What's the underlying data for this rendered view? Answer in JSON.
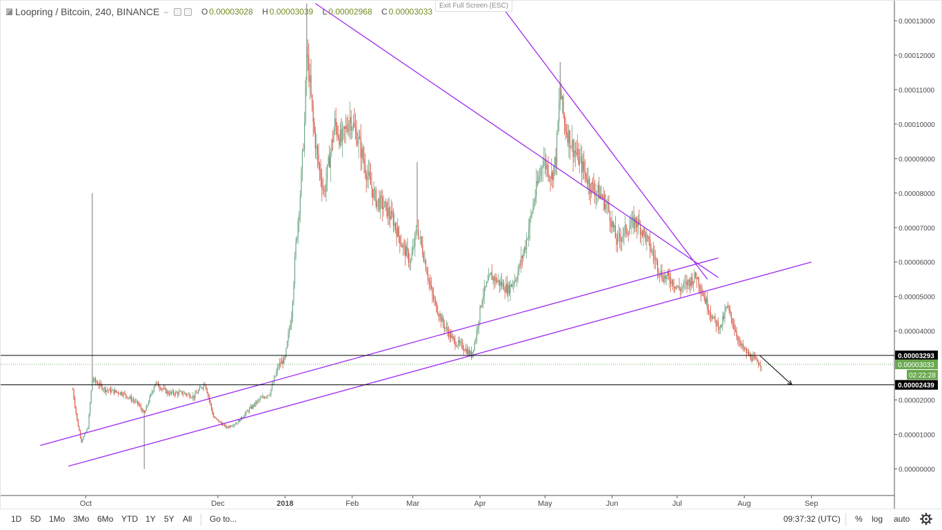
{
  "legend": {
    "symbol": "Loopring / Bitcoin, 240, BINANCE",
    "open_label": "O",
    "open": "0.00003028",
    "high_label": "H",
    "high": "0.00003039",
    "low_label": "L",
    "low": "0.00002968",
    "close_label": "C",
    "close": "0.00003033"
  },
  "exit_fullscreen": "Exit Full Screen (ESC)",
  "chart_data": {
    "type": "candlestick",
    "title": "Loopring / Bitcoin, 240, BINANCE",
    "y_ticks": [
      "0.00013000",
      "0.00012000",
      "0.00011000",
      "0.00010000",
      "0.00009000",
      "0.00008000",
      "0.00007000",
      "0.00006000",
      "0.00005000",
      "0.00004000",
      "0.00002000",
      "0.00001000",
      "0.00000000"
    ],
    "y_tick_values": [
      0.00013,
      0.00012,
      0.00011,
      0.0001,
      9e-05,
      8e-05,
      7e-05,
      6e-05,
      5e-05,
      4e-05,
      2e-05,
      1e-05,
      0.0
    ],
    "ylim": [
      -7.5e-06,
      0.000135
    ],
    "x_ticks": [
      "Oct",
      "Dec",
      "2018",
      "Feb",
      "Mar",
      "Apr",
      "May",
      "Jun",
      "Jul",
      "Aug",
      "Sep"
    ],
    "x_tick_dates": [
      "2017-10-01",
      "2017-12-01",
      "2018-01-01",
      "2018-02-01",
      "2018-03-01",
      "2018-04-01",
      "2018-05-01",
      "2018-06-01",
      "2018-07-01",
      "2018-08-01",
      "2018-09-01"
    ],
    "xlim": [
      "2017-08-24",
      "2018-10-09"
    ],
    "price_path": [
      [
        "2017-09-25",
        2.3e-05
      ],
      [
        "2017-09-27",
        1.4e-05
      ],
      [
        "2017-09-29",
        8e-06
      ],
      [
        "2017-10-02",
        1.2e-05
      ],
      [
        "2017-10-04",
        2.6e-05
      ],
      [
        "2017-10-10",
        2.3e-05
      ],
      [
        "2017-10-18",
        2.2e-05
      ],
      [
        "2017-10-25",
        1.9e-05
      ],
      [
        "2017-10-28",
        1.6e-05
      ],
      [
        "2017-11-02",
        2.5e-05
      ],
      [
        "2017-11-08",
        2.2e-05
      ],
      [
        "2017-11-15",
        2.2e-05
      ],
      [
        "2017-11-20",
        2.1e-05
      ],
      [
        "2017-11-25",
        2.5e-05
      ],
      [
        "2017-11-29",
        1.5e-05
      ],
      [
        "2017-12-05",
        1.2e-05
      ],
      [
        "2017-12-10",
        1.35e-05
      ],
      [
        "2017-12-15",
        1.7e-05
      ],
      [
        "2017-12-20",
        2e-05
      ],
      [
        "2017-12-25",
        2.2e-05
      ],
      [
        "2017-12-29",
        3e-05
      ],
      [
        "2018-01-01",
        3.2e-05
      ],
      [
        "2018-01-04",
        4.5e-05
      ],
      [
        "2018-01-06",
        6.5e-05
      ],
      [
        "2018-01-08",
        8e-05
      ],
      [
        "2018-01-10",
        0.0001
      ],
      [
        "2018-01-11",
        0.00012
      ],
      [
        "2018-01-12",
        0.000115
      ],
      [
        "2018-01-14",
        0.0001
      ],
      [
        "2018-01-16",
        9e-05
      ],
      [
        "2018-01-19",
        8e-05
      ],
      [
        "2018-01-21",
        8.8e-05
      ],
      [
        "2018-01-24",
        0.0001
      ],
      [
        "2018-01-27",
        9.5e-05
      ],
      [
        "2018-01-31",
        0.000102
      ],
      [
        "2018-02-04",
        9.5e-05
      ],
      [
        "2018-02-08",
        8.5e-05
      ],
      [
        "2018-02-12",
        7.8e-05
      ],
      [
        "2018-02-16",
        7.6e-05
      ],
      [
        "2018-02-20",
        7.2e-05
      ],
      [
        "2018-02-24",
        6.5e-05
      ],
      [
        "2018-02-28",
        6e-05
      ],
      [
        "2018-03-03",
        7e-05
      ],
      [
        "2018-03-06",
        6.2e-05
      ],
      [
        "2018-03-10",
        5e-05
      ],
      [
        "2018-03-15",
        4.2e-05
      ],
      [
        "2018-03-20",
        3.7e-05
      ],
      [
        "2018-03-25",
        3.5e-05
      ],
      [
        "2018-03-28",
        3.3e-05
      ],
      [
        "2018-03-30",
        3.8e-05
      ],
      [
        "2018-04-02",
        5e-05
      ],
      [
        "2018-04-06",
        5.6e-05
      ],
      [
        "2018-04-10",
        5.4e-05
      ],
      [
        "2018-04-14",
        5.2e-05
      ],
      [
        "2018-04-18",
        5.6e-05
      ],
      [
        "2018-04-22",
        6.5e-05
      ],
      [
        "2018-04-26",
        7.8e-05
      ],
      [
        "2018-04-30",
        9e-05
      ],
      [
        "2018-05-04",
        8.5e-05
      ],
      [
        "2018-05-06",
        9e-05
      ],
      [
        "2018-05-08",
        0.00011
      ],
      [
        "2018-05-10",
        0.0001
      ],
      [
        "2018-05-14",
        9.3e-05
      ],
      [
        "2018-05-18",
        8.8e-05
      ],
      [
        "2018-05-22",
        8.2e-05
      ],
      [
        "2018-05-26",
        8e-05
      ],
      [
        "2018-05-30",
        7.6e-05
      ],
      [
        "2018-06-03",
        6.6e-05
      ],
      [
        "2018-06-07",
        6.9e-05
      ],
      [
        "2018-06-12",
        7.2e-05
      ],
      [
        "2018-06-16",
        6.8e-05
      ],
      [
        "2018-06-20",
        6.2e-05
      ],
      [
        "2018-06-24",
        5.6e-05
      ],
      [
        "2018-06-28",
        5.5e-05
      ],
      [
        "2018-07-02",
        5.2e-05
      ],
      [
        "2018-07-06",
        5.4e-05
      ],
      [
        "2018-07-10",
        5.6e-05
      ],
      [
        "2018-07-14",
        4.9e-05
      ],
      [
        "2018-07-18",
        4.3e-05
      ],
      [
        "2018-07-21",
        4.1e-05
      ],
      [
        "2018-07-24",
        4.7e-05
      ],
      [
        "2018-07-27",
        4.2e-05
      ],
      [
        "2018-07-30",
        3.6e-05
      ],
      [
        "2018-08-03",
        3.3e-05
      ],
      [
        "2018-08-07",
        3.1e-05
      ],
      [
        "2018-08-09",
        3.03e-05
      ]
    ],
    "spikes": [
      {
        "date": "2017-10-04",
        "high": 8e-05
      },
      {
        "date": "2017-10-28",
        "low": 0.0
      },
      {
        "date": "2018-01-11",
        "high": 0.000135
      },
      {
        "date": "2018-03-03",
        "high": 8.9e-05
      },
      {
        "date": "2018-05-08",
        "high": 0.000118
      }
    ],
    "trend_lines": [
      {
        "from": [
          "2017-09-10",
          6.8e-06
        ],
        "to": [
          "2018-07-20",
          6.12e-05
        ]
      },
      {
        "from": [
          "2017-09-23",
          8e-07
        ],
        "to": [
          "2018-09-01",
          6e-05
        ]
      },
      {
        "from": [
          "2018-01-15",
          0.000135
        ],
        "to": [
          "2018-07-20",
          5.55e-05
        ]
      },
      {
        "from": [
          "2018-04-10",
          0.000135
        ],
        "to": [
          "2018-07-15",
          5.5e-05
        ]
      }
    ],
    "horizontal_lines": [
      {
        "value": 3.293e-05,
        "label": "0.00003293"
      },
      {
        "value": 2.439e-05,
        "label": "0.00002439"
      }
    ],
    "projection_arrow": {
      "from": [
        "2018-08-08",
        3.3e-05
      ],
      "to": [
        "2018-08-23",
        2.44e-05
      ]
    },
    "current_price": {
      "value": 3.033e-05,
      "label": "0.00003033",
      "countdown": "02:22:28"
    },
    "colors": {
      "up": "#6ba583",
      "down": "#d75442",
      "trend": "#9c27f0",
      "price_tag": "#6aa84f",
      "level": "#000000"
    }
  },
  "toolbar": {
    "ranges": [
      "1D",
      "5D",
      "1Mo",
      "3Mo",
      "6Mo",
      "YTD",
      "1Y",
      "5Y",
      "All"
    ],
    "goto": "Go to...",
    "time": "09:37:32 (UTC)",
    "percent": "%",
    "log": "log",
    "auto": "auto",
    "settings_icon": "gear-icon"
  }
}
